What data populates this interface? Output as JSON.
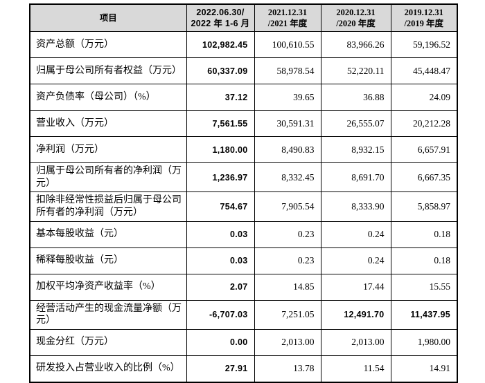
{
  "table": {
    "header": {
      "item_label": "项目",
      "periods": [
        {
          "line1": "2022.06.30/",
          "line2": "2022 年 1-6 月"
        },
        {
          "line1": "2021.12.31",
          "line2": "/2021 年度"
        },
        {
          "line1": "2020.12.31",
          "line2": "/2020 年度"
        },
        {
          "line1": "2019.12.31",
          "line2": "/2019 年度"
        }
      ]
    },
    "rows": [
      {
        "label": "资产总额（万元）",
        "values": [
          "102,982.45",
          "100,610.55",
          "83,966.26",
          "59,196.52"
        ],
        "bold": [
          true,
          false,
          false,
          false
        ]
      },
      {
        "label": "归属于母公司所有者权益（万元）",
        "values": [
          "60,337.09",
          "58,978.54",
          "52,220.11",
          "45,448.47"
        ],
        "bold": [
          true,
          false,
          false,
          false
        ]
      },
      {
        "label": "资产负债率（母公司）（%）",
        "values": [
          "37.12",
          "39.65",
          "36.88",
          "24.09"
        ],
        "bold": [
          true,
          false,
          false,
          false
        ]
      },
      {
        "label": "营业收入（万元）",
        "values": [
          "7,561.55",
          "30,591.31",
          "26,555.07",
          "20,212.28"
        ],
        "bold": [
          true,
          false,
          false,
          false
        ]
      },
      {
        "label": "净利润（万元）",
        "values": [
          "1,180.00",
          "8,490.83",
          "8,932.15",
          "6,657.91"
        ],
        "bold": [
          true,
          false,
          false,
          false
        ]
      },
      {
        "label": "归属于母公司所有者的净利润（万元）",
        "values": [
          "1,236.97",
          "8,332.45",
          "8,691.70",
          "6,667.35"
        ],
        "bold": [
          true,
          false,
          false,
          false
        ]
      },
      {
        "label": "扣除非经常性损益后归属于母公司所有者的净利润（万元）",
        "values": [
          "754.67",
          "7,905.54",
          "8,333.90",
          "5,858.97"
        ],
        "bold": [
          true,
          false,
          false,
          false
        ]
      },
      {
        "label": "基本每股收益（元）",
        "values": [
          "0.03",
          "0.23",
          "0.24",
          "0.18"
        ],
        "bold": [
          true,
          false,
          false,
          false
        ]
      },
      {
        "label": "稀释每股收益（元）",
        "values": [
          "0.03",
          "0.23",
          "0.24",
          "0.18"
        ],
        "bold": [
          true,
          false,
          false,
          false
        ]
      },
      {
        "label": "加权平均净资产收益率（%）",
        "values": [
          "2.07",
          "14.85",
          "17.44",
          "15.55"
        ],
        "bold": [
          true,
          false,
          false,
          false
        ]
      },
      {
        "label": "经营活动产生的现金流量净额（万元）",
        "values": [
          "-6,707.03",
          "7,251.05",
          "12,491.70",
          "11,437.95"
        ],
        "bold": [
          true,
          false,
          true,
          true
        ]
      },
      {
        "label": "现金分红（万元）",
        "values": [
          "0.00",
          "2,013.00",
          "2,013.00",
          "1,980.00"
        ],
        "bold": [
          true,
          false,
          false,
          false
        ]
      },
      {
        "label": "研发投入占营业收入的比例（%）",
        "values": [
          "27.91",
          "13.78",
          "11.54",
          "14.91"
        ],
        "bold": [
          true,
          false,
          false,
          false
        ]
      }
    ]
  },
  "colors": {
    "header_bg": "#d9d9d9",
    "border": "#000000",
    "text": "#000000",
    "page_bg": "#ffffff"
  }
}
